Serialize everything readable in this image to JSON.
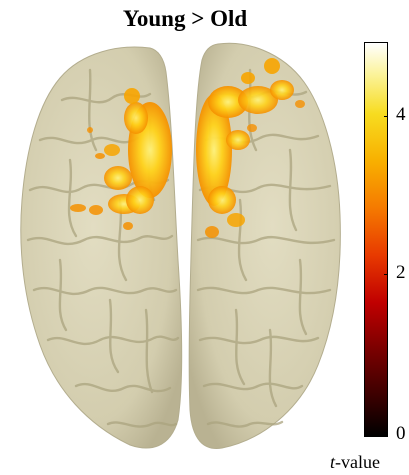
{
  "figure": {
    "title": "Young > Old",
    "description_panel": "top-view brain surface"
  },
  "colorbar": {
    "ticks": [
      "0",
      "2",
      "4"
    ],
    "tick_values": [
      0,
      2,
      4
    ],
    "max": 5,
    "label_italic": "t",
    "label_rest": "-value",
    "colormap": "hot",
    "colors": {
      "low": "#000000",
      "mid_low": "#c00000",
      "mid": "#f57a00",
      "mid_high": "#f7dc20",
      "high": "#ffffff"
    }
  },
  "colors": {
    "cortex": "#d8d3b4",
    "sulci": "#a9a27e",
    "activation_core": "#ffe23a",
    "activation_edge": "#f58a00"
  }
}
